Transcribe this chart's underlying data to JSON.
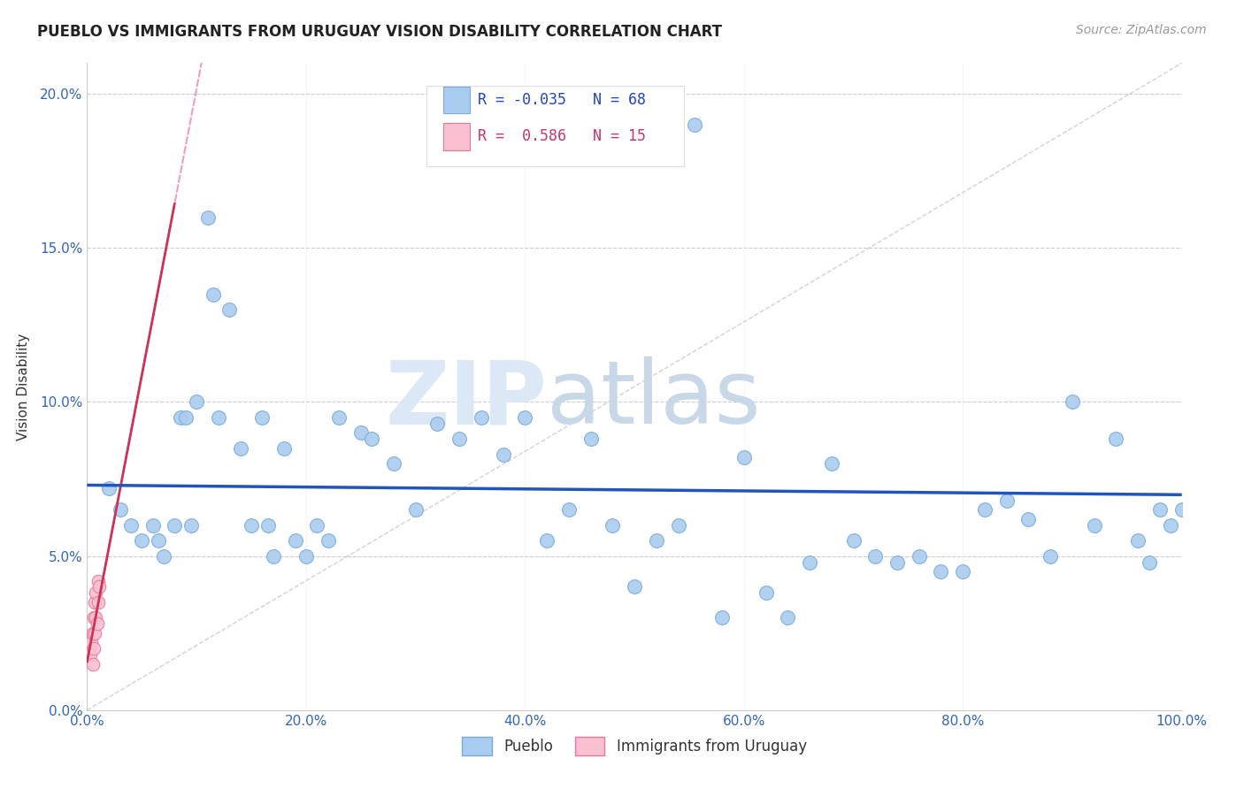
{
  "title": "PUEBLO VS IMMIGRANTS FROM URUGUAY VISION DISABILITY CORRELATION CHART",
  "source": "Source: ZipAtlas.com",
  "ylabel": "Vision Disability",
  "xlim": [
    0.0,
    1.0
  ],
  "ylim": [
    0.0,
    0.21
  ],
  "xticks": [
    0.0,
    0.2,
    0.4,
    0.6,
    0.8,
    1.0
  ],
  "xtick_labels": [
    "0.0%",
    "20.0%",
    "40.0%",
    "60.0%",
    "80.0%",
    "100.0%"
  ],
  "yticks": [
    0.0,
    0.05,
    0.1,
    0.15,
    0.2
  ],
  "ytick_labels": [
    "0.0%",
    "5.0%",
    "10.0%",
    "15.0%",
    "20.0%"
  ],
  "pueblo_color": "#aaccf0",
  "pueblo_edge": "#7aaad8",
  "immigrants_color": "#f8c0d0",
  "immigrants_edge": "#e87898",
  "pueblo_R": -0.035,
  "pueblo_N": 68,
  "immigrants_R": 0.586,
  "immigrants_N": 15,
  "watermark_zip": "ZIP",
  "watermark_atlas": "atlas",
  "blue_trend_y_at_0": 0.062,
  "blue_trend_y_at_1": 0.055,
  "pueblo_x": [
    0.02,
    0.03,
    0.04,
    0.05,
    0.06,
    0.065,
    0.07,
    0.08,
    0.085,
    0.09,
    0.095,
    0.1,
    0.11,
    0.115,
    0.12,
    0.13,
    0.14,
    0.15,
    0.16,
    0.165,
    0.17,
    0.18,
    0.19,
    0.2,
    0.21,
    0.22,
    0.23,
    0.25,
    0.26,
    0.28,
    0.3,
    0.32,
    0.34,
    0.36,
    0.38,
    0.4,
    0.42,
    0.44,
    0.46,
    0.48,
    0.5,
    0.52,
    0.54,
    0.555,
    0.58,
    0.6,
    0.62,
    0.64,
    0.66,
    0.68,
    0.7,
    0.72,
    0.74,
    0.76,
    0.78,
    0.8,
    0.82,
    0.84,
    0.86,
    0.88,
    0.9,
    0.92,
    0.94,
    0.96,
    0.97,
    0.98,
    0.99,
    1.0
  ],
  "pueblo_y": [
    0.072,
    0.065,
    0.06,
    0.055,
    0.06,
    0.055,
    0.05,
    0.06,
    0.095,
    0.095,
    0.06,
    0.1,
    0.16,
    0.135,
    0.095,
    0.13,
    0.085,
    0.06,
    0.095,
    0.06,
    0.05,
    0.085,
    0.055,
    0.05,
    0.06,
    0.055,
    0.095,
    0.09,
    0.088,
    0.08,
    0.065,
    0.093,
    0.088,
    0.095,
    0.083,
    0.095,
    0.055,
    0.065,
    0.088,
    0.06,
    0.04,
    0.055,
    0.06,
    0.19,
    0.03,
    0.082,
    0.038,
    0.03,
    0.048,
    0.08,
    0.055,
    0.05,
    0.048,
    0.05,
    0.045,
    0.045,
    0.065,
    0.068,
    0.062,
    0.05,
    0.1,
    0.06,
    0.088,
    0.055,
    0.048,
    0.065,
    0.06,
    0.065
  ],
  "immigrants_x": [
    0.002,
    0.003,
    0.004,
    0.005,
    0.005,
    0.006,
    0.006,
    0.007,
    0.007,
    0.008,
    0.008,
    0.009,
    0.01,
    0.01,
    0.011
  ],
  "immigrants_y": [
    0.02,
    0.018,
    0.022,
    0.015,
    0.025,
    0.02,
    0.03,
    0.025,
    0.035,
    0.03,
    0.038,
    0.028,
    0.035,
    0.042,
    0.04
  ]
}
